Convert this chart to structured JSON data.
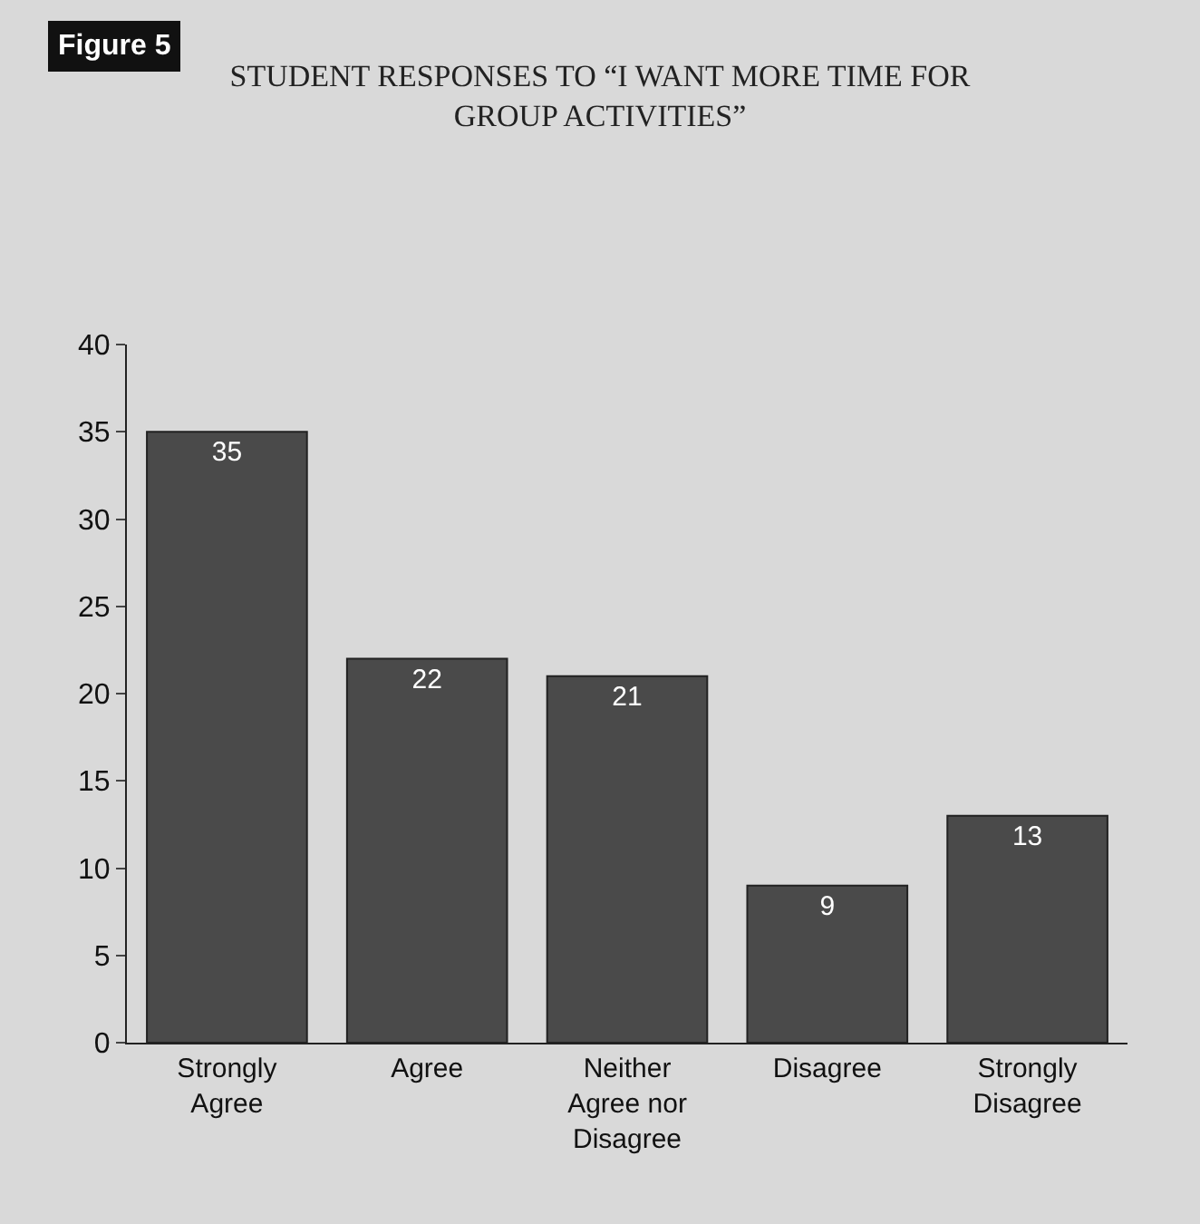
{
  "chart_data": {
    "type": "bar",
    "title": "STUDENT RESPONSES TO “I WANT MORE TIME FOR GROUP ACTIVITIES”",
    "categories": [
      "Strongly Agree",
      "Agree",
      "Neither Agree nor Disagree",
      "Disagree",
      "Strongly Disagree"
    ],
    "values": [
      35,
      22,
      21,
      9,
      13
    ],
    "color": "#4a4a4a",
    "ylim": [
      0,
      40
    ],
    "yticks": [
      0,
      5,
      10,
      15,
      20,
      25,
      30,
      35,
      40
    ],
    "grid": false,
    "data_labels": true,
    "annotations": [
      "Figure 5"
    ]
  }
}
